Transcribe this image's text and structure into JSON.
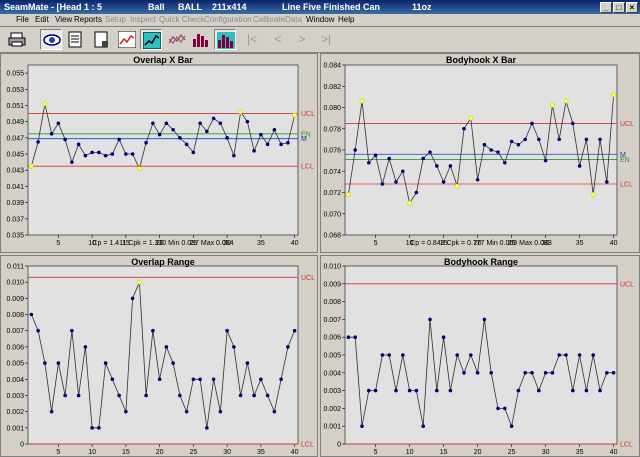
{
  "window": {
    "app_title": "SeamMate - [Head 1 : 5",
    "field1": "Ball",
    "field2": "BALL",
    "field3": "211x414",
    "field4": "Line Five Finished Can",
    "field5": "11oz",
    "btn_min": "_",
    "btn_max": "□",
    "btn_close": "×"
  },
  "menu": {
    "file": "File",
    "edit": "Edit",
    "view": "View",
    "reports": "Reports",
    "setup": "Setup",
    "inspect": "Inspect",
    "quick_check": "Quick Check",
    "configuration": "Configuration",
    "calibrate": "Calibrate",
    "data": "Data",
    "window": "Window",
    "help": "Help"
  },
  "toolbar": {
    "icons": [
      "printer-icon",
      "eye-icon",
      "list-icon",
      "page-icon",
      "xbar-chart-icon",
      "range-chart-icon",
      "multi-chart-icon",
      "histogram-icon",
      "histogram-teal-icon"
    ],
    "nav": {
      "first": "|<",
      "prev": "<",
      "next": ">",
      "last": ">|"
    }
  },
  "colors": {
    "ucl": "#d83030",
    "lcl": "#d83030",
    "mean": "#2040c0",
    "en": "#2a9a2a",
    "point": "#000080",
    "highlight": "#ffff40",
    "plot_bg": "#e1e1e1"
  },
  "chart_data": [
    {
      "type": "line",
      "title": "Overlap X Bar",
      "x_ticks": [
        5,
        10,
        15,
        20,
        25,
        30,
        35,
        40
      ],
      "y_ticks": [
        "0.035",
        "0.037",
        "0.039",
        "0.041",
        "0.043",
        "0.045",
        "0.047",
        "0.049",
        "0.051",
        "0.053",
        "0.055"
      ],
      "ylim": [
        0.035,
        0.056
      ],
      "x": [
        1,
        2,
        3,
        4,
        5,
        6,
        7,
        8,
        9,
        10,
        11,
        12,
        13,
        14,
        15,
        16,
        17,
        18,
        19,
        20,
        21,
        22,
        23,
        24,
        25,
        26,
        27,
        28,
        29,
        30,
        31,
        32,
        33,
        34,
        35,
        36,
        37,
        38,
        39,
        40
      ],
      "values": [
        0.0435,
        0.0465,
        0.0512,
        0.0475,
        0.0488,
        0.0468,
        0.044,
        0.0462,
        0.0448,
        0.0452,
        0.0452,
        0.0448,
        0.045,
        0.0468,
        0.045,
        0.045,
        0.0432,
        0.0464,
        0.0488,
        0.0474,
        0.0488,
        0.048,
        0.047,
        0.0462,
        0.0452,
        0.0488,
        0.0478,
        0.0494,
        0.0488,
        0.047,
        0.0448,
        0.0502,
        0.049,
        0.0454,
        0.0474,
        0.0462,
        0.048,
        0.0462,
        0.0464,
        0.0498
      ],
      "highlight_points": [
        1,
        3,
        17,
        32,
        40
      ],
      "ucl": 0.05,
      "ucl_label": "UCL",
      "lcl": 0.0435,
      "lcl_label": "LCL",
      "en": 0.0475,
      "en_label": "EN",
      "mean": 0.0469,
      "mean_label": "M",
      "stats": "Cp = 1.411  Cpk = 1.330  Min 0.037  Max 0.054"
    },
    {
      "type": "line",
      "title": "Bodyhook X Bar",
      "x_ticks": [
        5,
        10,
        15,
        20,
        25,
        30,
        35,
        40
      ],
      "y_ticks": [
        "0.068",
        "0.070",
        "0.072",
        "0.074",
        "0.076",
        "0.078",
        "0.080",
        "0.082",
        "0.084"
      ],
      "ylim": [
        0.068,
        0.084
      ],
      "x": [
        1,
        2,
        3,
        4,
        5,
        6,
        7,
        8,
        9,
        10,
        11,
        12,
        13,
        14,
        15,
        16,
        17,
        18,
        19,
        20,
        21,
        22,
        23,
        24,
        25,
        26,
        27,
        28,
        29,
        30,
        31,
        32,
        33,
        34,
        35,
        36,
        37,
        38,
        39,
        40
      ],
      "values": [
        0.0718,
        0.076,
        0.0806,
        0.0748,
        0.0755,
        0.0728,
        0.0752,
        0.073,
        0.074,
        0.071,
        0.072,
        0.0752,
        0.0758,
        0.0745,
        0.073,
        0.0745,
        0.0726,
        0.078,
        0.079,
        0.0732,
        0.0765,
        0.076,
        0.0758,
        0.0748,
        0.0768,
        0.0765,
        0.077,
        0.0785,
        0.077,
        0.075,
        0.0802,
        0.077,
        0.0806,
        0.0785,
        0.0745,
        0.077,
        0.0718,
        0.077,
        0.073,
        0.0812
      ],
      "highlight_points": [
        1,
        3,
        10,
        17,
        19,
        31,
        33,
        37,
        40
      ],
      "ucl": 0.0785,
      "ucl_label": "UCL",
      "lcl": 0.0728,
      "lcl_label": "LCL",
      "en": 0.0751,
      "en_label": "EN",
      "mean": 0.0756,
      "mean_label": "M",
      "stats": "Cp = 0.843  Cpk = 0.777  Min 0.069  Max 0.083"
    },
    {
      "type": "line",
      "title": "Overlap Range",
      "x_ticks": [
        5,
        10,
        15,
        20,
        25,
        30,
        35,
        40
      ],
      "y_ticks": [
        "0",
        "0.001",
        "0.002",
        "0.003",
        "0.004",
        "0.005",
        "0.006",
        "0.007",
        "0.008",
        "0.009",
        "0.010",
        "0.011"
      ],
      "ylim": [
        0,
        0.011
      ],
      "x": [
        1,
        2,
        3,
        4,
        5,
        6,
        7,
        8,
        9,
        10,
        11,
        12,
        13,
        14,
        15,
        16,
        17,
        18,
        19,
        20,
        21,
        22,
        23,
        24,
        25,
        26,
        27,
        28,
        29,
        30,
        31,
        32,
        33,
        34,
        35,
        36,
        37,
        38,
        39,
        40
      ],
      "values": [
        0.008,
        0.007,
        0.005,
        0.002,
        0.005,
        0.003,
        0.007,
        0.003,
        0.006,
        0.001,
        0.001,
        0.005,
        0.004,
        0.003,
        0.002,
        0.009,
        0.01,
        0.003,
        0.007,
        0.004,
        0.006,
        0.005,
        0.003,
        0.002,
        0.004,
        0.004,
        0.001,
        0.004,
        0.002,
        0.007,
        0.006,
        0.003,
        0.005,
        0.003,
        0.004,
        0.003,
        0.002,
        0.004,
        0.006,
        0.007
      ],
      "highlight_points": [
        17
      ],
      "ucl": 0.0103,
      "ucl_label": "UCL",
      "lcl": 0.0,
      "lcl_label": "LCL"
    },
    {
      "type": "line",
      "title": "Bodyhook Range",
      "x_ticks": [
        5,
        10,
        15,
        20,
        25,
        30,
        35,
        40
      ],
      "y_ticks": [
        "0",
        "0.001",
        "0.002",
        "0.003",
        "0.004",
        "0.005",
        "0.006",
        "0.007",
        "0.008",
        "0.009",
        "0.010"
      ],
      "ylim": [
        0,
        0.01
      ],
      "x": [
        1,
        2,
        3,
        4,
        5,
        6,
        7,
        8,
        9,
        10,
        11,
        12,
        13,
        14,
        15,
        16,
        17,
        18,
        19,
        20,
        21,
        22,
        23,
        24,
        25,
        26,
        27,
        28,
        29,
        30,
        31,
        32,
        33,
        34,
        35,
        36,
        37,
        38,
        39,
        40
      ],
      "values": [
        0.006,
        0.006,
        0.001,
        0.003,
        0.003,
        0.005,
        0.005,
        0.003,
        0.005,
        0.003,
        0.003,
        0.001,
        0.007,
        0.003,
        0.006,
        0.003,
        0.005,
        0.004,
        0.005,
        0.004,
        0.007,
        0.004,
        0.002,
        0.002,
        0.001,
        0.003,
        0.004,
        0.004,
        0.003,
        0.004,
        0.004,
        0.005,
        0.005,
        0.003,
        0.005,
        0.003,
        0.005,
        0.003,
        0.004,
        0.004
      ],
      "highlight_points": [],
      "ucl": 0.009,
      "ucl_label": "UCL",
      "lcl": 0.0,
      "lcl_label": "LCL"
    }
  ]
}
